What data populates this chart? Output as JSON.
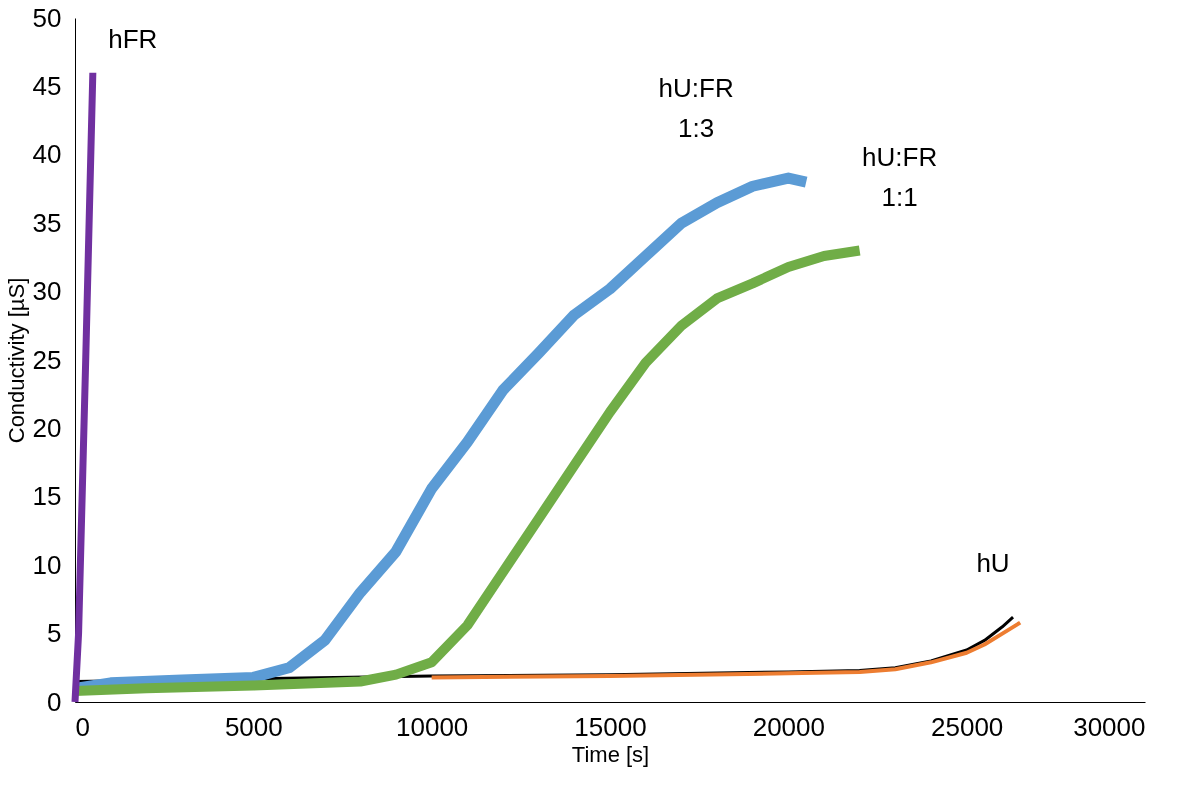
{
  "chart_data": {
    "type": "line",
    "xlabel": "Time [s]",
    "ylabel": "Conductivity [µS]",
    "xlim": [
      0,
      30000
    ],
    "xticks": [
      0,
      5000,
      10000,
      15000,
      20000,
      25000,
      30000
    ],
    "ylim": [
      0,
      50
    ],
    "yticks": [
      0,
      5,
      10,
      15,
      20,
      25,
      30,
      35,
      40,
      45,
      50
    ],
    "grid": false,
    "marker": "none",
    "line_style": "solid",
    "series": [
      {
        "color": "#000000",
        "x": [
          0,
          10000,
          15000,
          20000,
          22000,
          23000,
          24000,
          25000,
          25500,
          26000,
          26300
        ],
        "values": [
          1.5,
          1.9,
          2.0,
          2.2,
          2.3,
          2.5,
          3.0,
          3.8,
          4.5,
          5.5,
          6.2
        ]
      },
      {
        "color": "#ed7d31",
        "x": [
          10000,
          15000,
          20000,
          22000,
          23000,
          24000,
          25000,
          25500,
          26000,
          26500
        ],
        "values": [
          1.8,
          1.9,
          2.1,
          2.2,
          2.4,
          2.9,
          3.6,
          4.2,
          5.0,
          5.8
        ]
      },
      {
        "color": "#5b9bd5",
        "x": [
          0,
          1000,
          3000,
          5000,
          6000,
          7000,
          8000,
          9000,
          10000,
          11000,
          12000,
          13000,
          14000,
          15000,
          16000,
          17000,
          18000,
          19000,
          20000,
          20500
        ],
        "values": [
          1.0,
          1.4,
          1.6,
          1.8,
          2.5,
          4.5,
          8.0,
          11.0,
          15.6,
          19.0,
          22.8,
          25.5,
          28.3,
          30.2,
          32.6,
          35.0,
          36.5,
          37.7,
          38.3,
          38.0
        ]
      },
      {
        "color": "#70ad47",
        "x": [
          0,
          2000,
          5000,
          8000,
          9000,
          10000,
          11000,
          12000,
          13000,
          14000,
          15000,
          16000,
          17000,
          18000,
          19000,
          20000,
          21000,
          22000
        ],
        "values": [
          0.8,
          1.0,
          1.2,
          1.5,
          2.0,
          2.9,
          5.6,
          9.5,
          13.4,
          17.3,
          21.2,
          24.8,
          27.5,
          29.5,
          30.6,
          31.8,
          32.6,
          33.0
        ]
      },
      {
        "color": "#7030a0",
        "x": [
          0,
          100,
          300,
          500
        ],
        "values": [
          0,
          5,
          25,
          46
        ]
      }
    ],
    "annotations": [
      "hFR",
      "hU:FR 1:3",
      "hU:FR 1:1",
      "hU"
    ]
  }
}
